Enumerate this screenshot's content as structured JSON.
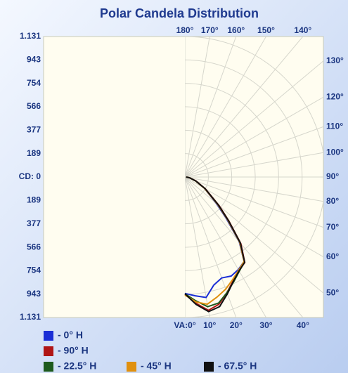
{
  "chart_data": {
    "type": "polar",
    "title": "Polar Candela Distribution",
    "rticks": [
      {
        "value": 0,
        "label": "CD: 0"
      },
      189,
      377,
      566,
      754,
      943,
      {
        "value": 1131,
        "label": "1.131"
      }
    ],
    "angle_ticks": [
      {
        "value": 0,
        "label": "VA:0°"
      },
      {
        "value": 10,
        "label": "10°"
      },
      {
        "value": 20,
        "label": "20°"
      },
      {
        "value": 30,
        "label": "30°"
      },
      {
        "value": 40,
        "label": "40°"
      },
      {
        "value": 50,
        "label": "50°"
      },
      {
        "value": 60,
        "label": "60°"
      },
      {
        "value": 70,
        "label": "70°"
      },
      {
        "value": 80,
        "label": "80°"
      },
      {
        "value": 90,
        "label": "90°"
      },
      {
        "value": 100,
        "label": "100°"
      },
      {
        "value": 110,
        "label": "110°"
      },
      {
        "value": 120,
        "label": "120°"
      },
      {
        "value": 130,
        "label": "130°"
      },
      {
        "value": 140,
        "label": "140°"
      },
      {
        "value": 150,
        "label": "150°"
      },
      {
        "value": 160,
        "label": "160°"
      },
      {
        "value": 170,
        "label": "170°"
      },
      {
        "value": 180,
        "label": "180°"
      }
    ],
    "rlim": [
      0,
      1131
    ],
    "grid": true,
    "x": [
      0,
      5,
      10,
      15,
      20,
      25,
      30,
      35,
      40,
      45,
      50,
      60,
      70,
      80,
      90
    ],
    "series": [
      {
        "name": "- 0° H",
        "color": "#1a2ed6",
        "values": [
          937,
          960,
          985,
          900,
          865,
          880,
          860,
          830,
          680,
          470,
          330,
          180,
          90,
          40,
          10
        ]
      },
      {
        "name": "- 90° H",
        "color": "#b01515",
        "values": [
          940,
          1020,
          1090,
          1060,
          990,
          920,
          870,
          840,
          700,
          500,
          360,
          190,
          95,
          40,
          10
        ]
      },
      {
        "name": "- 22.5° H",
        "color": "#1d5a1d",
        "values": [
          940,
          1000,
          1060,
          1050,
          990,
          930,
          875,
          835,
          690,
          490,
          350,
          185,
          92,
          40,
          10
        ]
      },
      {
        "name": "- 45° H",
        "color": "#e0900f",
        "values": [
          950,
          1010,
          1040,
          1000,
          960,
          910,
          865,
          830,
          685,
          485,
          345,
          182,
          91,
          40,
          10
        ]
      },
      {
        "name": "- 67.5° H",
        "color": "#111111",
        "values": [
          940,
          1030,
          1100,
          1080,
          1000,
          925,
          872,
          838,
          695,
          495,
          355,
          188,
          94,
          40,
          10
        ]
      }
    ]
  }
}
